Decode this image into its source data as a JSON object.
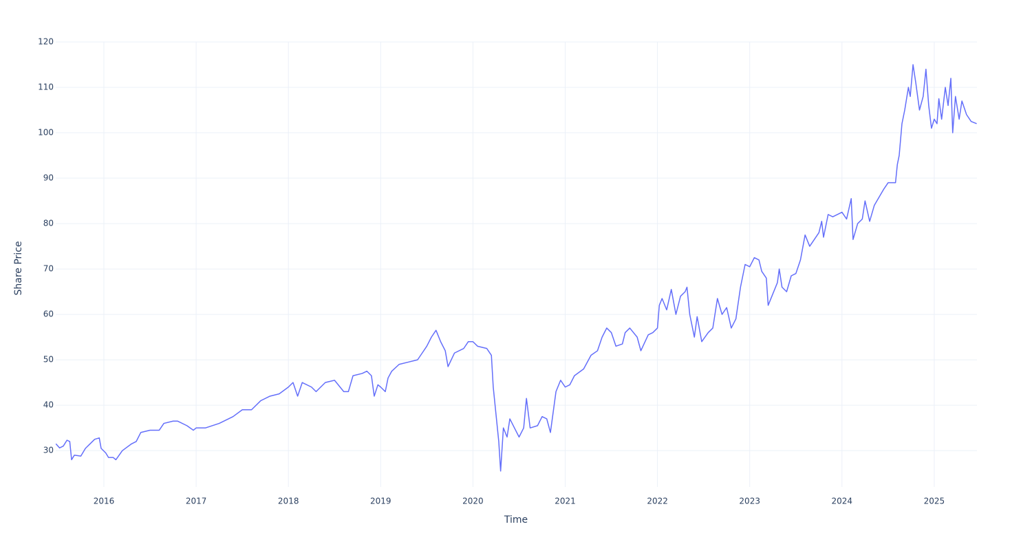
{
  "chart_data": {
    "type": "line",
    "x_label": "Time",
    "y_label": "Share Price",
    "x": [
      2015.48,
      2015.52,
      2015.56,
      2015.6,
      2015.63,
      2015.65,
      2015.68,
      2015.75,
      2015.8,
      2015.85,
      2015.9,
      2015.95,
      2015.97,
      2016.02,
      2016.05,
      2016.1,
      2016.13,
      2016.2,
      2016.3,
      2016.35,
      2016.4,
      2016.5,
      2016.6,
      2016.65,
      2016.75,
      2016.8,
      2016.9,
      2016.97,
      2017.0,
      2017.1,
      2017.25,
      2017.4,
      2017.5,
      2017.6,
      2017.7,
      2017.8,
      2017.9,
      2018.0,
      2018.05,
      2018.1,
      2018.15,
      2018.25,
      2018.3,
      2018.4,
      2018.5,
      2018.6,
      2018.65,
      2018.7,
      2018.8,
      2018.85,
      2018.9,
      2018.93,
      2018.97,
      2019.0,
      2019.05,
      2019.08,
      2019.12,
      2019.2,
      2019.3,
      2019.4,
      2019.45,
      2019.5,
      2019.55,
      2019.6,
      2019.65,
      2019.7,
      2019.73,
      2019.8,
      2019.9,
      2019.95,
      2020.0,
      2020.05,
      2020.15,
      2020.2,
      2020.22,
      2020.25,
      2020.28,
      2020.3,
      2020.33,
      2020.37,
      2020.4,
      2020.45,
      2020.5,
      2020.55,
      2020.58,
      2020.62,
      2020.7,
      2020.75,
      2020.8,
      2020.84,
      2020.9,
      2020.95,
      2021.0,
      2021.05,
      2021.1,
      2021.2,
      2021.28,
      2021.35,
      2021.4,
      2021.45,
      2021.5,
      2021.55,
      2021.62,
      2021.65,
      2021.7,
      2021.78,
      2021.82,
      2021.9,
      2021.95,
      2022.0,
      2022.02,
      2022.05,
      2022.1,
      2022.15,
      2022.2,
      2022.25,
      2022.3,
      2022.32,
      2022.35,
      2022.4,
      2022.43,
      2022.48,
      2022.55,
      2022.6,
      2022.65,
      2022.7,
      2022.75,
      2022.8,
      2022.85,
      2022.9,
      2022.95,
      2023.0,
      2023.05,
      2023.1,
      2023.13,
      2023.18,
      2023.2,
      2023.25,
      2023.3,
      2023.32,
      2023.35,
      2023.4,
      2023.45,
      2023.5,
      2023.55,
      2023.6,
      2023.65,
      2023.7,
      2023.75,
      2023.78,
      2023.8,
      2023.85,
      2023.9,
      2024.0,
      2024.05,
      2024.1,
      2024.12,
      2024.17,
      2024.22,
      2024.25,
      2024.3,
      2024.35,
      2024.45,
      2024.5,
      2024.58,
      2024.6,
      2024.62,
      2024.65,
      2024.68,
      2024.72,
      2024.74,
      2024.77,
      2024.8,
      2024.84,
      2024.88,
      2024.91,
      2024.94,
      2024.97,
      2025.0,
      2025.03,
      2025.05,
      2025.08,
      2025.12,
      2025.15,
      2025.18,
      2025.2,
      2025.23,
      2025.27,
      2025.3,
      2025.35,
      2025.4,
      2025.46
    ],
    "series": [
      {
        "color": "#636efa",
        "values": [
          31.5,
          30.6,
          31,
          32.3,
          32,
          28,
          29,
          28.8,
          30.5,
          31.5,
          32.5,
          32.8,
          30.5,
          29.5,
          28.5,
          28.5,
          28,
          30,
          31.5,
          32,
          34,
          34.5,
          34.5,
          36,
          36.5,
          36.5,
          35.5,
          34.5,
          35,
          35,
          36,
          37.5,
          39,
          39,
          41,
          42,
          42.5,
          44,
          45,
          42,
          45,
          44,
          43,
          45,
          45.5,
          43,
          43,
          46.5,
          47,
          47.5,
          46.5,
          42,
          44.5,
          44,
          43,
          46,
          47.5,
          49,
          49.5,
          50,
          51.5,
          53,
          55,
          56.5,
          54,
          52,
          48.5,
          51.5,
          52.5,
          54,
          54,
          53,
          52.5,
          51,
          44,
          38,
          32,
          25.5,
          35,
          33,
          37,
          35,
          33,
          35,
          41.5,
          35,
          35.5,
          37.5,
          37,
          34,
          43,
          45.5,
          44,
          44.5,
          46.5,
          48,
          51,
          52,
          55,
          57,
          56,
          53,
          53.5,
          56,
          57,
          55,
          52,
          55.5,
          56,
          57,
          62,
          63.5,
          61,
          65.5,
          60,
          64,
          65,
          66,
          60,
          55,
          59.5,
          54,
          56,
          57,
          63.5,
          60,
          61.5,
          57,
          59,
          66,
          71,
          70.5,
          72.5,
          72,
          69.5,
          68,
          62,
          64.5,
          67,
          70,
          66,
          65,
          68.5,
          69,
          72,
          77.5,
          75,
          76.5,
          78,
          80.5,
          77,
          82,
          81.5,
          82.5,
          81,
          85.5,
          76.5,
          80,
          81,
          85,
          80.5,
          84,
          87.5,
          89,
          89,
          93,
          95,
          102,
          105,
          110,
          108,
          115,
          111,
          105,
          108,
          114,
          106,
          101,
          103,
          102,
          107.5,
          103,
          110,
          106,
          112,
          100,
          108,
          103,
          107,
          104,
          102.5,
          102
        ]
      }
    ],
    "xlim": [
      2015.478,
      2025.463
    ],
    "xticks": [
      2016,
      2017,
      2018,
      2019,
      2020,
      2021,
      2022,
      2023,
      2024,
      2025
    ],
    "ylim": [
      22,
      120
    ],
    "yticks": [
      30,
      40,
      50,
      60,
      70,
      80,
      90,
      100,
      110,
      120
    ],
    "grid": true
  }
}
